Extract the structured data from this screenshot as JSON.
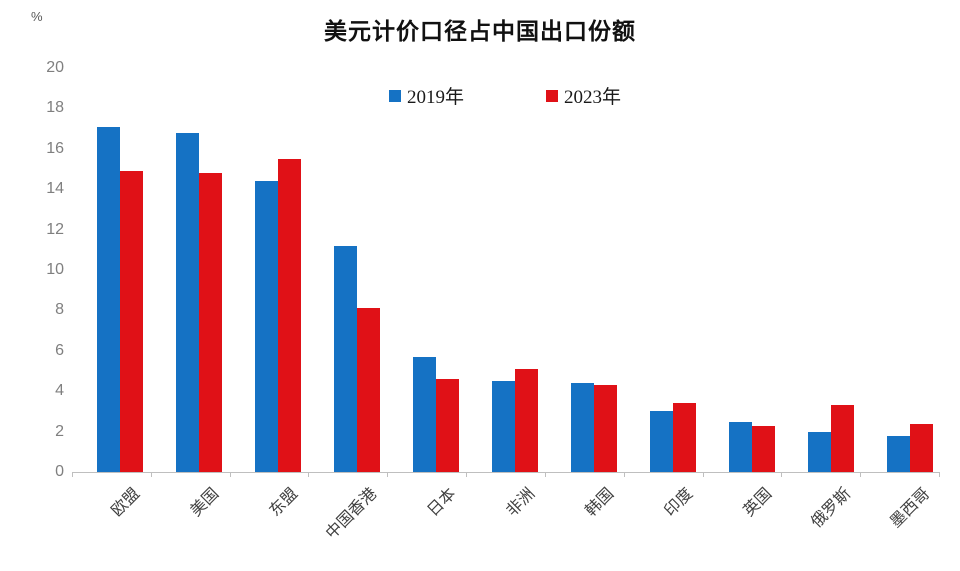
{
  "chart": {
    "unit_label": "%"
  },
  "chart_data": {
    "type": "bar",
    "title": "美元计价口径占中国出口份额",
    "categories": [
      "欧盟",
      "美国",
      "东盟",
      "中国香港",
      "日本",
      "非洲",
      "韩国",
      "印度",
      "英国",
      "俄罗斯",
      "墨西哥"
    ],
    "series": [
      {
        "name": "2019年",
        "color": "#1572C4",
        "values": [
          17.1,
          16.8,
          14.4,
          11.2,
          5.7,
          4.5,
          4.4,
          3.0,
          2.5,
          2.0,
          1.8
        ]
      },
      {
        "name": "2023年",
        "color": "#E01117",
        "values": [
          14.9,
          14.8,
          15.5,
          8.1,
          4.6,
          5.1,
          4.3,
          3.4,
          2.3,
          3.3,
          2.4
        ]
      }
    ],
    "xlabel": "",
    "ylabel": "%",
    "ylim": [
      0,
      20
    ],
    "ytick_step": 2,
    "grid": false,
    "legend_position": "top-center",
    "axis_color": "#bfbfbf",
    "ytick_label_color": "#7f7f7f",
    "xtick_label_color": "#404040"
  }
}
